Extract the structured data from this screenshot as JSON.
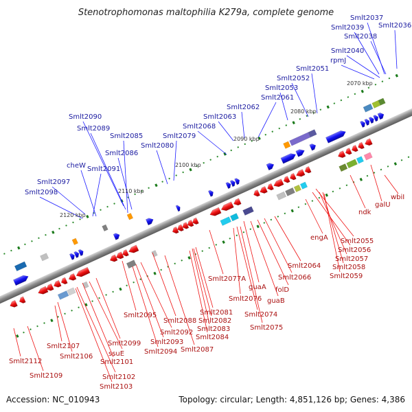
{
  "title": "Stenotrophomonas maltophilia K279a, complete genome",
  "footer": {
    "accession": "Accession: NC_010943",
    "summary": "Topology: circular; Length: 4,851,126 bp; Genes: 4,386"
  },
  "colors": {
    "plus_strand": "#1a1aff",
    "minus_strand": "#ee1111",
    "backbone": "#8c8c8c",
    "tick_green": "#1a7a1a"
  },
  "kbp_labels": [
    "2070 kbp",
    "2080 kbp",
    "2090 kbp",
    "2100 kbp",
    "2110 kbp",
    "2120 kbp"
  ],
  "top_labels": [
    "Smlt2037",
    "Smlt2036",
    "Smlt2039",
    "Smlt2038",
    "Smlt2040",
    "rpmJ",
    "Smlt2051",
    "Smlt2052",
    "Smlt2053",
    "Smlt2061",
    "Smlt2062",
    "Smlt2063",
    "Smlt2068",
    "Smlt2079",
    "Smlt2080",
    "Smlt2085",
    "Smlt2086",
    "Smlt2090",
    "Smlt2089",
    "Smlt2091",
    "cheW",
    "Smlt2097",
    "Smlt2098"
  ],
  "bottom_labels": [
    "wbiI",
    "galU",
    "ndk",
    "engA",
    "Smlt2055",
    "Smlt2056",
    "Smlt2057",
    "Smlt2058",
    "Smlt2059",
    "Smlt2064",
    "Smlt2066",
    "folD",
    "guaB",
    "guaA",
    "Smlt2077A",
    "Smlt2076",
    "Smlt2074",
    "Smlt2075",
    "Smlt2081",
    "Smlt2082",
    "Smlt2083",
    "Smlt2084",
    "Smlt2088",
    "Smlt2087",
    "Smlt2095",
    "Smlt2092",
    "Smlt2093",
    "Smlt2094",
    "Smlt2099",
    "ssuE",
    "Smlt2101",
    "Smlt2102",
    "Smlt2103",
    "Smlt2106",
    "Smlt2107",
    "Smlt2109",
    "Smlt2112"
  ]
}
